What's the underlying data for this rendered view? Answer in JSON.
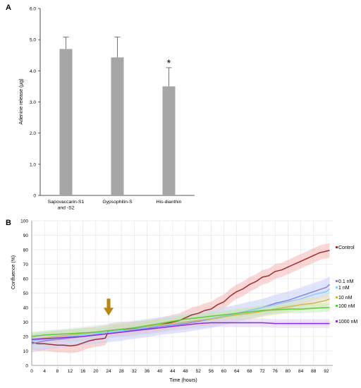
{
  "panel_a_label": "A",
  "panel_b_label": "B",
  "chart_data": [
    {
      "type": "bar",
      "categories": [
        "Sapovaccarin-S1 and -S2",
        "Gypsophilin-S",
        "His-dianthin"
      ],
      "category_lines": [
        [
          "Sapovaccarin-S1",
          "and -S2"
        ],
        [
          "Gypsophilin-S"
        ],
        [
          "His-dianthin"
        ]
      ],
      "values": [
        4.7,
        4.43,
        3.5
      ],
      "error_upper": [
        0.38,
        0.65,
        0.6
      ],
      "annotations": [
        "",
        "",
        "*"
      ],
      "ylabel": "Adenine release (µg)",
      "xlabel": "",
      "ylim": [
        0,
        6
      ],
      "yticks": [
        "0",
        "1.0",
        "2.0",
        "3.0",
        "4.0",
        "5.0",
        "6.0"
      ],
      "bar_color": "#a6a6a6",
      "grid": false
    },
    {
      "type": "line",
      "xlabel": "Time (hours)",
      "ylabel": "Confluence (%)",
      "xlim": [
        0,
        94
      ],
      "ylim": [
        0,
        100
      ],
      "xticks": [
        "0",
        "4",
        "8",
        "12",
        "16",
        "20",
        "24",
        "28",
        "32",
        "36",
        "40",
        "44",
        "48",
        "52",
        "56",
        "60",
        "64",
        "68",
        "72",
        "76",
        "80",
        "84",
        "88",
        "92"
      ],
      "yticks": [
        "0",
        "10",
        "20",
        "30",
        "40",
        "50",
        "60",
        "70",
        "80",
        "90",
        "100"
      ],
      "grid": true,
      "arrow_marker": {
        "x": 24,
        "y": 33,
        "color": "#b8860b"
      },
      "series": [
        {
          "name": "Control",
          "color": "#a52a2a",
          "band_color": "#f4a6a6",
          "band": 5,
          "x": [
            0,
            2,
            4,
            6,
            8,
            10,
            12,
            14,
            16,
            18,
            20,
            22,
            23,
            24,
            26,
            28,
            30,
            32,
            34,
            36,
            38,
            40,
            42,
            44,
            46,
            48,
            50,
            52,
            54,
            56,
            58,
            60,
            62,
            64,
            66,
            68,
            70,
            72,
            74,
            76,
            78,
            80,
            82,
            84,
            86,
            88,
            90,
            92,
            93
          ],
          "y": [
            16,
            15,
            15,
            14.5,
            14,
            14,
            13.5,
            14,
            15.5,
            17,
            18,
            18.5,
            19,
            24,
            24.5,
            25,
            25,
            25.5,
            26,
            26.5,
            27,
            28,
            29,
            30,
            31,
            33,
            35,
            36,
            38,
            39,
            42,
            44,
            48,
            51,
            53,
            56,
            58,
            61,
            62,
            65,
            66,
            68,
            70,
            72,
            74,
            76,
            78,
            79,
            79.5
          ]
        },
        {
          "name": "0.1 nM",
          "color": "#8f7ee0",
          "band_color": "#c9c4f5",
          "band": 6,
          "x": [
            0,
            4,
            8,
            12,
            16,
            20,
            24,
            28,
            32,
            36,
            40,
            44,
            48,
            52,
            56,
            60,
            64,
            68,
            72,
            76,
            80,
            84,
            88,
            92,
            93
          ],
          "y": [
            15,
            17,
            18,
            19,
            20,
            21,
            22,
            23,
            24.5,
            25.5,
            27,
            28,
            29,
            30.5,
            32,
            34,
            36,
            38,
            40,
            43,
            45,
            48,
            51,
            54,
            56
          ]
        },
        {
          "name": "1 nM",
          "color": "#87cefa",
          "band_color": "#cfe7fb",
          "band": 6,
          "x": [
            0,
            4,
            8,
            12,
            16,
            20,
            24,
            28,
            32,
            36,
            40,
            44,
            48,
            52,
            56,
            60,
            64,
            68,
            72,
            76,
            80,
            84,
            88,
            92,
            93
          ],
          "y": [
            17,
            18,
            19,
            20,
            21,
            22,
            23,
            24,
            25,
            26.5,
            27.5,
            28.5,
            29.5,
            31,
            32.5,
            34,
            36,
            38,
            40,
            42,
            44,
            46,
            49,
            51,
            53
          ]
        },
        {
          "name": "10 nM",
          "color": "#d2b45c",
          "band_color": "#ead9a6",
          "band": 4,
          "x": [
            0,
            4,
            8,
            12,
            16,
            20,
            24,
            28,
            32,
            36,
            40,
            44,
            48,
            52,
            56,
            60,
            64,
            68,
            72,
            76,
            80,
            84,
            88,
            92,
            93
          ],
          "y": [
            18,
            19,
            20,
            21,
            22,
            23,
            24,
            25,
            26,
            27,
            28,
            29,
            30,
            31,
            32,
            33.5,
            35,
            36,
            37.5,
            39,
            40.5,
            42,
            43,
            45,
            46
          ]
        },
        {
          "name": "100 nM",
          "color": "#5bcc3c",
          "band_color": "#bde8ae",
          "band": 3,
          "x": [
            0,
            4,
            8,
            12,
            16,
            20,
            24,
            28,
            32,
            36,
            40,
            44,
            48,
            52,
            56,
            60,
            64,
            68,
            72,
            76,
            80,
            84,
            88,
            92,
            93
          ],
          "y": [
            20,
            21,
            21.5,
            22,
            22.5,
            23,
            24,
            25,
            26,
            27.5,
            29,
            30.5,
            32,
            33,
            34,
            35,
            36,
            37,
            38,
            38.5,
            39,
            39,
            39.5,
            40,
            40
          ]
        },
        {
          "name": "1000 nM",
          "color": "#8a2be2",
          "band_color": "#dcc6f2",
          "band": 3,
          "x": [
            0,
            4,
            8,
            12,
            16,
            20,
            24,
            28,
            32,
            36,
            40,
            44,
            48,
            52,
            56,
            60,
            64,
            68,
            72,
            76,
            80,
            84,
            88,
            92,
            93
          ],
          "y": [
            18,
            18.5,
            19,
            19.5,
            20,
            21,
            22,
            23,
            24,
            25,
            26,
            27,
            28,
            29,
            29.5,
            29.5,
            29.5,
            29.5,
            29.5,
            29,
            29,
            29,
            29,
            29,
            29
          ]
        }
      ]
    }
  ]
}
